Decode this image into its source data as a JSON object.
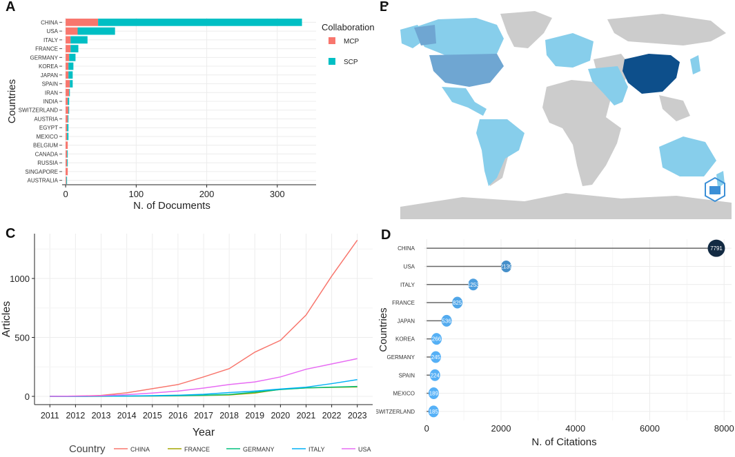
{
  "panel_labels": {
    "a": "A",
    "b": "B",
    "c": "C",
    "d": "D"
  },
  "chart_data": [
    {
      "type": "bar",
      "stacked": true,
      "orientation": "horizontal",
      "title": "",
      "xlabel": "N. of Documents",
      "ylabel": "Countries",
      "xlim": [
        -5,
        355
      ],
      "xticks": [
        0,
        100,
        200,
        300
      ],
      "categories": [
        "CHINA",
        "USA",
        "ITALY",
        "FRANCE",
        "GERMANY",
        "KOREA",
        "JAPAN",
        "SPAIN",
        "IRAN",
        "INDIA",
        "SWITZERLAND",
        "AUSTRIA",
        "EGYPT",
        "MEXICO",
        "BELGIUM",
        "CANADA",
        "RUSSIA",
        "SINGAPORE",
        "AUSTRALIA"
      ],
      "legend_title": "Collaboration",
      "series": [
        {
          "name": "MCP",
          "color": "#F8766D",
          "values": [
            46,
            17,
            7,
            7,
            5,
            4,
            4,
            6,
            5,
            3,
            4,
            3,
            2,
            2,
            3,
            2,
            2,
            3,
            1
          ]
        },
        {
          "name": "SCP",
          "color": "#00BFC4",
          "values": [
            289,
            53,
            24,
            11,
            9,
            7,
            6,
            4,
            1,
            2,
            1,
            1,
            2,
            2,
            0,
            1,
            1,
            0,
            1
          ]
        }
      ]
    },
    {
      "type": "map",
      "title": "",
      "description": "World map shaded by publication count",
      "colors": {
        "none": "#CCCCCC",
        "low": "#87CEEB",
        "mid": "#6FA6D2",
        "high": "#0D4F8B"
      }
    },
    {
      "type": "line",
      "title": "",
      "xlabel": "Year",
      "ylabel": "Articles",
      "x": [
        2011,
        2012,
        2013,
        2014,
        2015,
        2016,
        2017,
        2018,
        2019,
        2020,
        2021,
        2022,
        2023
      ],
      "ylim": [
        -70,
        1380
      ],
      "yticks": [
        0,
        500,
        1000
      ],
      "legend_title": "Country",
      "series": [
        {
          "name": "CHINA",
          "color": "#F8766D",
          "values": [
            0,
            2,
            8,
            30,
            65,
            100,
            165,
            235,
            375,
            475,
            690,
            1020,
            1325
          ]
        },
        {
          "name": "FRANCE",
          "color": "#A3A500",
          "values": [
            0,
            0,
            1,
            2,
            3,
            5,
            8,
            12,
            28,
            60,
            72,
            76,
            80
          ]
        },
        {
          "name": "GERMANY",
          "color": "#00BF7D",
          "values": [
            0,
            0,
            1,
            2,
            4,
            6,
            10,
            16,
            35,
            58,
            72,
            78,
            84
          ]
        },
        {
          "name": "ITALY",
          "color": "#00B0F6",
          "values": [
            0,
            0,
            2,
            3,
            6,
            10,
            18,
            32,
            45,
            62,
            78,
            108,
            142
          ]
        },
        {
          "name": "USA",
          "color": "#E76BF3",
          "values": [
            0,
            2,
            5,
            15,
            28,
            45,
            70,
            100,
            122,
            165,
            230,
            275,
            320
          ]
        }
      ]
    },
    {
      "type": "lollipop",
      "title": "",
      "xlabel": "N. of Citations",
      "ylabel": "Countries",
      "xlim": [
        -60,
        8200
      ],
      "xticks": [
        0,
        2000,
        4000,
        6000,
        8000
      ],
      "categories": [
        "CHINA",
        "USA",
        "ITALY",
        "FRANCE",
        "JAPAN",
        "KOREA",
        "GERMANY",
        "SPAIN",
        "MEXICO",
        "SWITZERLAND"
      ],
      "values": [
        7791,
        2139,
        1253,
        825,
        536,
        266,
        245,
        224,
        189,
        185
      ],
      "point_labels": [
        "7791",
        "2139",
        "1253",
        "825",
        "536",
        "266",
        "245",
        "224",
        "189",
        "185"
      ],
      "colors": {
        "high": "#132B43",
        "low": "#56B1F7"
      }
    }
  ]
}
